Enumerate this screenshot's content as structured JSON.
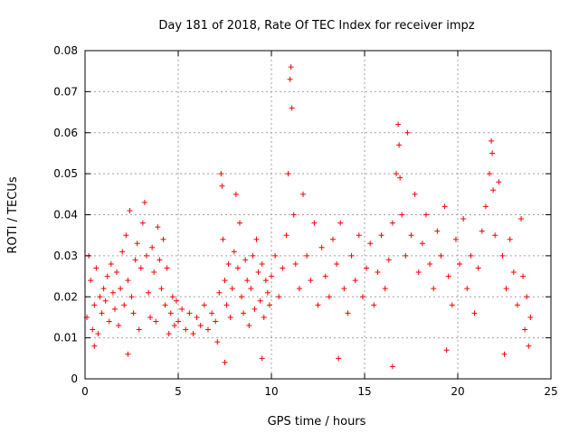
{
  "chart_data": {
    "type": "scatter",
    "title": "Day 181 of 2018, Rate Of TEC Index for receiver impz",
    "xlabel": "GPS time / hours",
    "ylabel": "ROTI / TECUs",
    "xlim": [
      0,
      25
    ],
    "ylim": [
      0,
      0.08
    ],
    "x_ticks": [
      0,
      5,
      10,
      15,
      20,
      25
    ],
    "y_ticks": [
      0,
      0.01,
      0.02,
      0.03,
      0.04,
      0.05,
      0.06,
      0.07,
      0.08
    ],
    "x_tick_labels": [
      "0",
      "5",
      "10",
      "15",
      "20",
      "25"
    ],
    "y_tick_labels": [
      "0",
      "0.01",
      "0.02",
      "0.03",
      "0.04",
      "0.05",
      "0.06",
      "0.07",
      "0.08"
    ],
    "grid": true,
    "marker": "+",
    "color": "#ff0000",
    "series": [
      {
        "name": "ROTI",
        "points": [
          [
            0.1,
            0.015
          ],
          [
            0.2,
            0.03
          ],
          [
            0.3,
            0.024
          ],
          [
            0.4,
            0.012
          ],
          [
            0.5,
            0.018
          ],
          [
            0.6,
            0.027
          ],
          [
            0.7,
            0.011
          ],
          [
            0.8,
            0.02
          ],
          [
            0.9,
            0.016
          ],
          [
            1.0,
            0.022
          ],
          [
            1.1,
            0.019
          ],
          [
            1.2,
            0.025
          ],
          [
            1.3,
            0.014
          ],
          [
            1.4,
            0.028
          ],
          [
            1.5,
            0.021
          ],
          [
            1.6,
            0.017
          ],
          [
            1.7,
            0.026
          ],
          [
            1.8,
            0.013
          ],
          [
            1.9,
            0.022
          ],
          [
            2.0,
            0.031
          ],
          [
            2.1,
            0.018
          ],
          [
            2.2,
            0.035
          ],
          [
            2.3,
            0.024
          ],
          [
            2.4,
            0.041
          ],
          [
            2.5,
            0.02
          ],
          [
            2.6,
            0.016
          ],
          [
            2.7,
            0.029
          ],
          [
            2.8,
            0.033
          ],
          [
            2.9,
            0.012
          ],
          [
            3.0,
            0.027
          ],
          [
            3.1,
            0.038
          ],
          [
            3.2,
            0.043
          ],
          [
            3.3,
            0.03
          ],
          [
            3.4,
            0.021
          ],
          [
            3.5,
            0.015
          ],
          [
            3.6,
            0.032
          ],
          [
            3.7,
            0.026
          ],
          [
            3.8,
            0.014
          ],
          [
            3.9,
            0.037
          ],
          [
            4.0,
            0.029
          ],
          [
            4.1,
            0.022
          ],
          [
            4.2,
            0.034
          ],
          [
            4.3,
            0.018
          ],
          [
            4.4,
            0.027
          ],
          [
            4.5,
            0.011
          ],
          [
            4.6,
            0.016
          ],
          [
            4.7,
            0.02
          ],
          [
            4.8,
            0.013
          ],
          [
            4.9,
            0.019
          ],
          [
            5.0,
            0.014
          ],
          [
            5.2,
            0.017
          ],
          [
            5.4,
            0.012
          ],
          [
            5.6,
            0.016
          ],
          [
            5.8,
            0.011
          ],
          [
            6.0,
            0.015
          ],
          [
            6.2,
            0.013
          ],
          [
            6.4,
            0.018
          ],
          [
            6.6,
            0.012
          ],
          [
            6.8,
            0.016
          ],
          [
            7.0,
            0.014
          ],
          [
            7.1,
            0.009
          ],
          [
            7.2,
            0.021
          ],
          [
            7.3,
            0.05
          ],
          [
            7.35,
            0.047
          ],
          [
            7.4,
            0.034
          ],
          [
            7.5,
            0.024
          ],
          [
            7.6,
            0.018
          ],
          [
            7.7,
            0.028
          ],
          [
            7.8,
            0.015
          ],
          [
            7.9,
            0.022
          ],
          [
            8.0,
            0.031
          ],
          [
            8.1,
            0.045
          ],
          [
            8.2,
            0.027
          ],
          [
            8.3,
            0.038
          ],
          [
            8.4,
            0.02
          ],
          [
            8.5,
            0.016
          ],
          [
            8.6,
            0.029
          ],
          [
            8.7,
            0.024
          ],
          [
            8.8,
            0.013
          ],
          [
            8.9,
            0.022
          ],
          [
            9.0,
            0.03
          ],
          [
            9.1,
            0.017
          ],
          [
            9.2,
            0.034
          ],
          [
            9.3,
            0.026
          ],
          [
            9.4,
            0.019
          ],
          [
            9.5,
            0.028
          ],
          [
            9.6,
            0.015
          ],
          [
            9.7,
            0.024
          ],
          [
            9.8,
            0.021
          ],
          [
            9.9,
            0.018
          ],
          [
            10.0,
            0.025
          ],
          [
            10.2,
            0.03
          ],
          [
            10.4,
            0.02
          ],
          [
            10.6,
            0.027
          ],
          [
            10.8,
            0.035
          ],
          [
            10.9,
            0.05
          ],
          [
            11.0,
            0.073
          ],
          [
            11.05,
            0.076
          ],
          [
            11.1,
            0.066
          ],
          [
            11.2,
            0.04
          ],
          [
            11.3,
            0.028
          ],
          [
            11.5,
            0.022
          ],
          [
            11.7,
            0.045
          ],
          [
            11.9,
            0.03
          ],
          [
            12.1,
            0.024
          ],
          [
            12.3,
            0.038
          ],
          [
            12.5,
            0.018
          ],
          [
            12.7,
            0.032
          ],
          [
            12.9,
            0.025
          ],
          [
            13.1,
            0.02
          ],
          [
            13.3,
            0.034
          ],
          [
            13.5,
            0.028
          ],
          [
            13.7,
            0.038
          ],
          [
            13.9,
            0.022
          ],
          [
            14.1,
            0.016
          ],
          [
            14.3,
            0.03
          ],
          [
            14.5,
            0.024
          ],
          [
            14.7,
            0.035
          ],
          [
            14.9,
            0.02
          ],
          [
            15.1,
            0.027
          ],
          [
            15.3,
            0.033
          ],
          [
            15.5,
            0.018
          ],
          [
            15.7,
            0.026
          ],
          [
            15.9,
            0.035
          ],
          [
            16.1,
            0.022
          ],
          [
            16.3,
            0.029
          ],
          [
            16.5,
            0.038
          ],
          [
            16.7,
            0.05
          ],
          [
            16.8,
            0.062
          ],
          [
            16.85,
            0.057
          ],
          [
            16.9,
            0.049
          ],
          [
            17.0,
            0.04
          ],
          [
            17.2,
            0.03
          ],
          [
            17.3,
            0.06
          ],
          [
            17.5,
            0.035
          ],
          [
            17.7,
            0.045
          ],
          [
            17.9,
            0.026
          ],
          [
            18.1,
            0.033
          ],
          [
            18.3,
            0.04
          ],
          [
            18.5,
            0.028
          ],
          [
            18.7,
            0.022
          ],
          [
            18.9,
            0.036
          ],
          [
            19.1,
            0.03
          ],
          [
            19.3,
            0.042
          ],
          [
            19.5,
            0.025
          ],
          [
            19.7,
            0.018
          ],
          [
            19.9,
            0.034
          ],
          [
            20.1,
            0.028
          ],
          [
            20.3,
            0.039
          ],
          [
            20.5,
            0.022
          ],
          [
            20.7,
            0.03
          ],
          [
            20.9,
            0.016
          ],
          [
            21.1,
            0.027
          ],
          [
            21.3,
            0.036
          ],
          [
            21.5,
            0.042
          ],
          [
            21.7,
            0.05
          ],
          [
            21.8,
            0.058
          ],
          [
            21.85,
            0.055
          ],
          [
            21.9,
            0.046
          ],
          [
            22.0,
            0.035
          ],
          [
            22.2,
            0.048
          ],
          [
            22.4,
            0.03
          ],
          [
            22.6,
            0.022
          ],
          [
            22.8,
            0.034
          ],
          [
            23.0,
            0.026
          ],
          [
            23.2,
            0.018
          ],
          [
            23.4,
            0.039
          ],
          [
            23.5,
            0.025
          ],
          [
            23.6,
            0.012
          ],
          [
            23.7,
            0.02
          ],
          [
            23.8,
            0.008
          ],
          [
            23.9,
            0.015
          ],
          [
            16.5,
            0.003
          ],
          [
            7.5,
            0.004
          ],
          [
            9.5,
            0.005
          ],
          [
            13.6,
            0.005
          ],
          [
            22.5,
            0.006
          ],
          [
            2.3,
            0.006
          ],
          [
            19.4,
            0.007
          ],
          [
            0.5,
            0.008
          ]
        ]
      }
    ]
  }
}
